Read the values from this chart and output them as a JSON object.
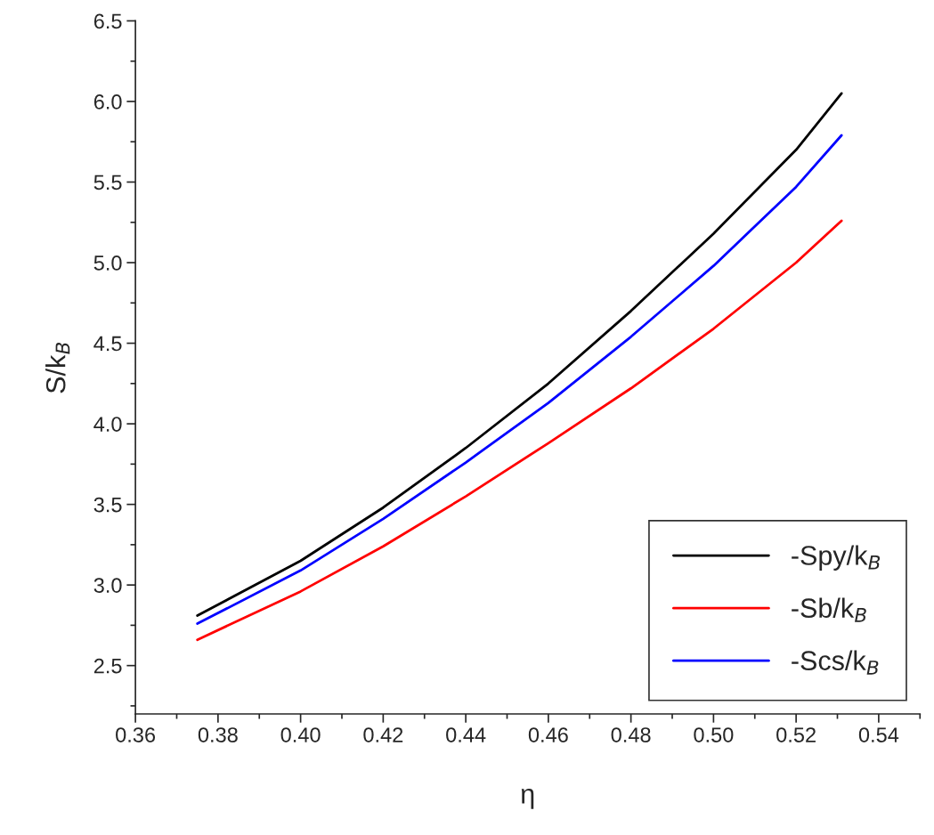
{
  "chart_data": {
    "type": "line",
    "xlabel": "η",
    "ylabel": "S/k$_{B}$",
    "x": [
      0.375,
      0.4,
      0.42,
      0.44,
      0.46,
      0.48,
      0.5,
      0.52,
      0.531
    ],
    "series": [
      {
        "name": "-Spy/k$_{B}$",
        "color": "#000000",
        "values": [
          2.81,
          3.15,
          3.48,
          3.85,
          4.25,
          4.7,
          5.18,
          5.7,
          6.05
        ]
      },
      {
        "name": "-Sb/k$_{B}$",
        "color": "#ff0000",
        "values": [
          2.66,
          2.96,
          3.24,
          3.55,
          3.88,
          4.22,
          4.59,
          5.0,
          5.26
        ]
      },
      {
        "name": "-Scs/k$_{B}$",
        "color": "#0000ff",
        "values": [
          2.76,
          3.09,
          3.41,
          3.76,
          4.13,
          4.54,
          4.98,
          5.47,
          5.79
        ]
      }
    ],
    "xlim": [
      0.36,
      0.55
    ],
    "ylim": [
      2.2,
      6.5
    ],
    "xticks": [
      {
        "value": 0.36,
        "label": "0.36"
      },
      {
        "value": 0.38,
        "label": "0.38"
      },
      {
        "value": 0.4,
        "label": "0.40"
      },
      {
        "value": 0.42,
        "label": "0.42"
      },
      {
        "value": 0.44,
        "label": "0.44"
      },
      {
        "value": 0.46,
        "label": "0.46"
      },
      {
        "value": 0.48,
        "label": "0.48"
      },
      {
        "value": 0.5,
        "label": "0.50"
      },
      {
        "value": 0.52,
        "label": "0.52"
      },
      {
        "value": 0.54,
        "label": "0.54"
      }
    ],
    "yticks": [
      {
        "value": 2.5,
        "label": "2.5"
      },
      {
        "value": 3.0,
        "label": "3.0"
      },
      {
        "value": 3.5,
        "label": "3.5"
      },
      {
        "value": 4.0,
        "label": "4.0"
      },
      {
        "value": 4.5,
        "label": "4.5"
      },
      {
        "value": 5.0,
        "label": "5.0"
      },
      {
        "value": 5.5,
        "label": "5.5"
      },
      {
        "value": 6.0,
        "label": "6.0"
      },
      {
        "value": 6.5,
        "label": "6.5"
      }
    ],
    "legend": "bottom right",
    "grid": false,
    "marker": "none",
    "line_style": "solid"
  }
}
